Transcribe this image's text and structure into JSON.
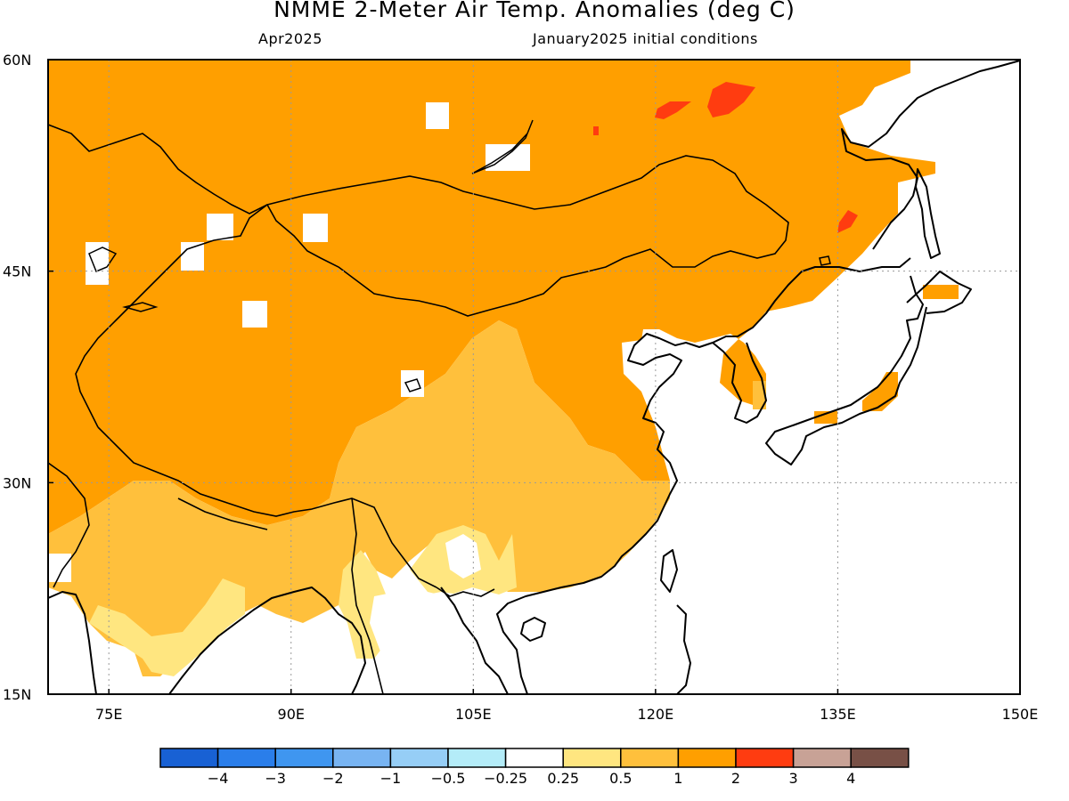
{
  "title": "NMME 2-Meter Air Temp. Anomalies (deg C)",
  "subtitle_left": "Apr2025",
  "subtitle_right": "January2025 initial conditions",
  "map": {
    "lon_range": [
      70,
      150
    ],
    "lat_range": [
      15,
      60
    ],
    "lon_ticks": [
      {
        "value": 75,
        "label": "75E"
      },
      {
        "value": 90,
        "label": "90E"
      },
      {
        "value": 105,
        "label": "105E"
      },
      {
        "value": 120,
        "label": "120E"
      },
      {
        "value": 135,
        "label": "135E"
      },
      {
        "value": 150,
        "label": "150E"
      }
    ],
    "lat_ticks": [
      {
        "value": 60,
        "label": "60N"
      },
      {
        "value": 45,
        "label": "45N"
      },
      {
        "value": 30,
        "label": "30N"
      },
      {
        "value": 15,
        "label": "15N"
      }
    ],
    "grid": "dotted at 15-degree intervals"
  },
  "colorbar": {
    "colors": [
      "#1861d4",
      "#2a7eea",
      "#3f96f0",
      "#78b4f2",
      "#96cef6",
      "#b4ecf8",
      "#ffffff",
      "#ffe680",
      "#ffc03c",
      "#ff9f00",
      "#ff3c10",
      "#c8a296",
      "#785046"
    ],
    "labels": [
      "−4",
      "−3",
      "−2",
      "−1",
      "−0.5",
      "−0.25",
      "0.25",
      "0.5",
      "1",
      "2",
      "3",
      "4"
    ]
  },
  "anomaly_levels": {
    "r1": "#ffe680",
    "r2": "#ffc03c",
    "r3": "#ff9f00",
    "r4": "#ff3c10"
  }
}
